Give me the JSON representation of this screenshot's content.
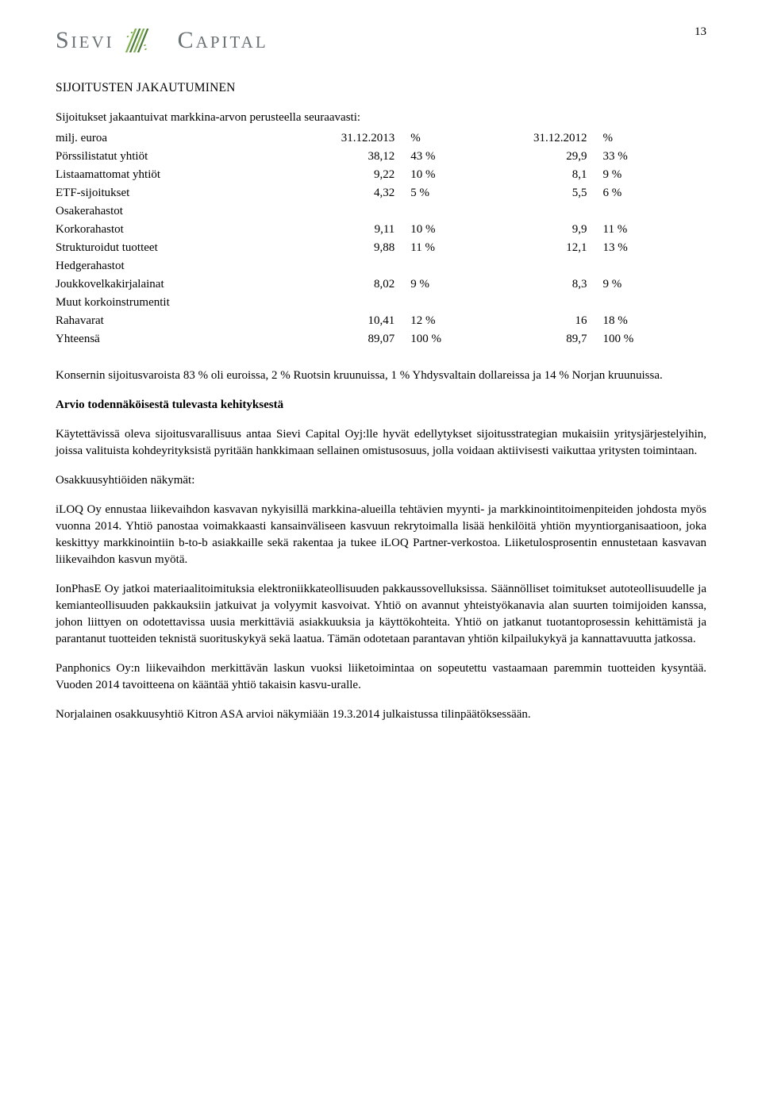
{
  "page_number": "13",
  "logo": {
    "word1": "Sievi",
    "word2": "Capital"
  },
  "section_title": "SIJOITUSTEN JAKAUTUMINEN",
  "intro_text": "Sijoitukset jakaantuivat markkina-arvon perusteella seuraavasti:",
  "unit_label": "milj. euroa",
  "col_headers": {
    "date1": "31.12.2013",
    "pct1": "%",
    "date2": "31.12.2012",
    "pct2": "%"
  },
  "rows": [
    {
      "label": "Pörssilistatut yhtiöt",
      "v1": "38,12",
      "p1": "43 %",
      "v2": "29,9",
      "p2": "33 %"
    },
    {
      "label": "Listaamattomat yhtiöt",
      "v1": "9,22",
      "p1": "10 %",
      "v2": "8,1",
      "p2": "9 %"
    },
    {
      "label": "ETF-sijoitukset",
      "v1": "4,32",
      "p1": "5 %",
      "v2": "5,5",
      "p2": "6 %"
    },
    {
      "label": "Osakerahastot",
      "v1": "",
      "p1": "",
      "v2": "",
      "p2": ""
    },
    {
      "label": "Korkorahastot",
      "v1": "9,11",
      "p1": "10 %",
      "v2": "9,9",
      "p2": "11 %"
    },
    {
      "label": "Strukturoidut tuotteet",
      "v1": "9,88",
      "p1": "11 %",
      "v2": "12,1",
      "p2": "13 %"
    },
    {
      "label": "Hedgerahastot",
      "v1": "",
      "p1": "",
      "v2": "",
      "p2": ""
    },
    {
      "label": "Joukkovelkakirjalainat",
      "v1": "8,02",
      "p1": "9 %",
      "v2": "8,3",
      "p2": "9 %"
    },
    {
      "label": "Muut korkoinstrumentit",
      "v1": "",
      "p1": "",
      "v2": "",
      "p2": ""
    },
    {
      "label": "Rahavarat",
      "v1": "10,41",
      "p1": "12 %",
      "v2": "16",
      "p2": "18 %"
    },
    {
      "label": "Yhteensä",
      "v1": "89,07",
      "p1": "100 %",
      "v2": "89,7",
      "p2": "100 %"
    }
  ],
  "para_currency": "Konsernin sijoitusvaroista 83 % oli euroissa, 2 % Ruotsin kruunuissa, 1 % Yhdysvaltain dollareissa ja 14 % Norjan kruunuissa.",
  "subhead_outlook": "Arvio todennäköisestä tulevasta kehityksestä",
  "para_outlook": "Käytettävissä oleva sijoitusvarallisuus antaa Sievi Capital Oyj:lle hyvät edellytykset sijoitusstrategian mukaisiin yritysjärjestelyihin, joissa valituista kohdeyrityksistä pyritään hankkimaan sellainen omistusosuus, jolla voidaan aktiivisesti vaikuttaa yritysten toimintaan.",
  "subhead_assoc": "Osakkuusyhtiöiden näkymät:",
  "para_iloq": "iLOQ Oy ennustaa liikevaihdon kasvavan nykyisillä markkina-alueilla tehtävien myynti- ja markkinointitoimenpiteiden johdosta myös vuonna 2014. Yhtiö panostaa voimakkaasti kansainväliseen kasvuun rekrytoimalla lisää henkilöitä yhtiön myyntiorganisaatioon, joka keskittyy markkinointiin b-to-b asiakkaille sekä rakentaa ja tukee iLOQ Partner-verkostoa. Liiketulosprosentin ennustetaan kasvavan liikevaihdon kasvun myötä.",
  "para_ionphase": "IonPhasE Oy jatkoi materiaalitoimituksia elektroniikkateollisuuden pakkaussovelluksissa. Säännölliset toimitukset autoteollisuudelle ja kemianteollisuuden pakkauksiin jatkuivat ja volyymit kasvoivat. Yhtiö on avannut yhteistyökanavia alan suurten toimijoiden kanssa, johon liittyen on odotettavissa uusia merkittäviä asiakkuuksia ja käyttökohteita. Yhtiö on jatkanut tuotantoprosessin kehittämistä ja parantanut tuotteiden teknistä suorituskykyä sekä laatua. Tämän odotetaan parantavan yhtiön kilpailukykyä ja kannattavuutta jatkossa.",
  "para_panphonics": "Panphonics Oy:n liikevaihdon merkittävän laskun vuoksi liiketoimintaa on sopeutettu vastaamaan paremmin tuotteiden kysyntää. Vuoden 2014 tavoitteena on kääntää yhtiö takaisin kasvu-uralle.",
  "para_kitron": "Norjalainen osakkuusyhtiö Kitron ASA arvioi näkymiään 19.3.2014 julkaistussa tilinpäätöksessään."
}
